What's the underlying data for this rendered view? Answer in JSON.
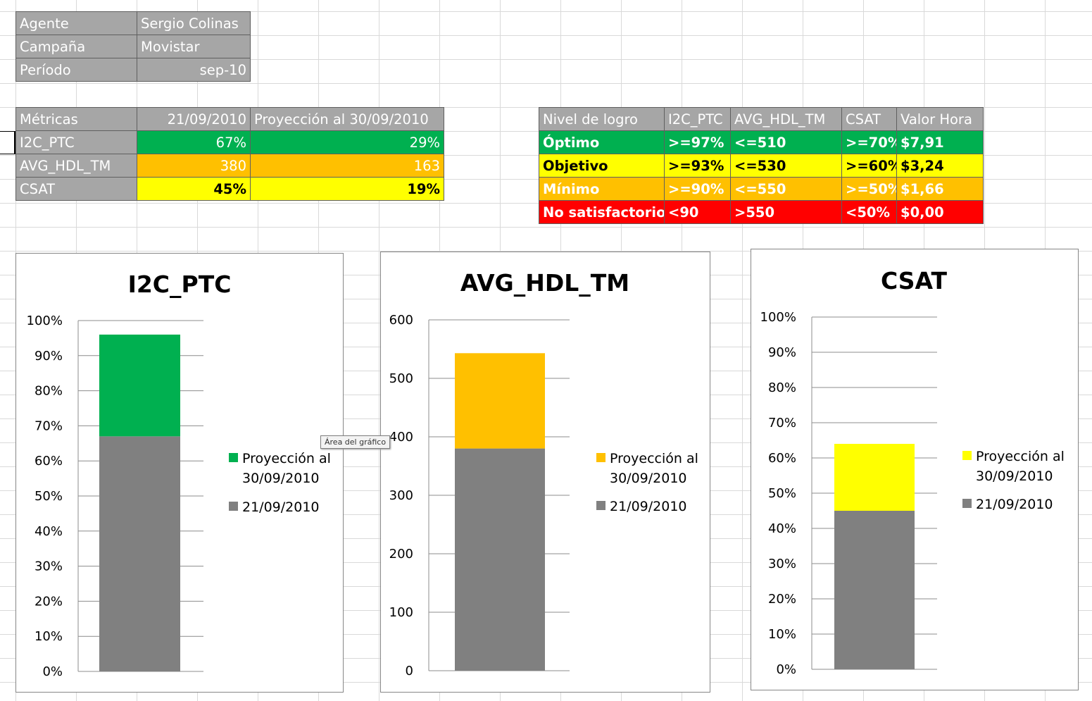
{
  "info_table": {
    "rows": [
      {
        "label": "Agente",
        "value": "Sergio Colinas"
      },
      {
        "label": "Campaña",
        "value": "Movistar"
      },
      {
        "label": "Período",
        "value": "sep-10"
      }
    ]
  },
  "metrics_table": {
    "headers": [
      "Métricas",
      "21/09/2010",
      "Proyección al 30/09/2010"
    ],
    "rows": [
      {
        "metric": "I2C_PTC",
        "current": "67%",
        "projection": "29%",
        "color": "#00b050"
      },
      {
        "metric": "AVG_HDL_TM",
        "current": "380",
        "projection": "163",
        "color": "#ffc000"
      },
      {
        "metric": "CSAT",
        "current": "45%",
        "projection": "19%",
        "color": "#ffff00"
      }
    ]
  },
  "levels_table": {
    "headers": [
      "Nivel de logro",
      "I2C_PTC",
      "AVG_HDL_TM",
      "CSAT",
      "Valor Hora"
    ],
    "rows": [
      {
        "cells": [
          "Óptimo",
          ">=97%",
          "<=510",
          ">=70%",
          "$7,91"
        ],
        "bg": "#00b050",
        "fg": "#ffffff"
      },
      {
        "cells": [
          "Objetivo",
          ">=93%",
          "<=530",
          ">=60%",
          "$3,24"
        ],
        "bg": "#ffff00",
        "fg": "#000000"
      },
      {
        "cells": [
          "Mínimo",
          ">=90%",
          "<=550",
          ">=50%",
          "$1,66"
        ],
        "bg": "#ffc000",
        "fg": "#ffffff"
      },
      {
        "cells": [
          "No satisfactorio",
          "<90",
          ">550",
          "<50%",
          "$0,00"
        ],
        "bg": "#ff0000",
        "fg": "#ffffff"
      }
    ]
  },
  "tooltip_text": "Área del gráfico",
  "chart_data": [
    {
      "type": "bar",
      "title": "I2C_PTC",
      "categories": [
        ""
      ],
      "series": [
        {
          "name": "21/09/2010",
          "values": [
            67
          ],
          "color": "#808080"
        },
        {
          "name": "Proyección al 30/09/2010",
          "values": [
            29
          ],
          "color": "#00b050"
        }
      ],
      "stacked": true,
      "ylim": [
        0,
        100
      ],
      "ticks": [
        0,
        10,
        20,
        30,
        40,
        50,
        60,
        70,
        80,
        90,
        100
      ],
      "tick_labels": [
        "0%",
        "10%",
        "20%",
        "30%",
        "40%",
        "50%",
        "60%",
        "70%",
        "80%",
        "90%",
        "100%"
      ],
      "legend_position": "right",
      "legend_entries": [
        {
          "lines": [
            "Proyección al",
            "30/09/2010"
          ],
          "color": "#00b050"
        },
        {
          "lines": [
            "21/09/2010"
          ],
          "color": "#808080"
        }
      ]
    },
    {
      "type": "bar",
      "title": "AVG_HDL_TM",
      "categories": [
        ""
      ],
      "series": [
        {
          "name": "21/09/2010",
          "values": [
            380
          ],
          "color": "#808080"
        },
        {
          "name": "Proyección al 30/09/2010",
          "values": [
            163
          ],
          "color": "#ffc000"
        }
      ],
      "stacked": true,
      "ylim": [
        0,
        600
      ],
      "ticks": [
        0,
        100,
        200,
        300,
        400,
        500,
        600
      ],
      "tick_labels": [
        "0",
        "100",
        "200",
        "300",
        "400",
        "500",
        "600"
      ],
      "legend_position": "right",
      "legend_entries": [
        {
          "lines": [
            "Proyección al",
            "30/09/2010"
          ],
          "color": "#ffc000"
        },
        {
          "lines": [
            "21/09/2010"
          ],
          "color": "#808080"
        }
      ]
    },
    {
      "type": "bar",
      "title": "CSAT",
      "categories": [
        ""
      ],
      "series": [
        {
          "name": "21/09/2010",
          "values": [
            45
          ],
          "color": "#808080"
        },
        {
          "name": "Proyección al 30/09/2010",
          "values": [
            19
          ],
          "color": "#ffff00"
        }
      ],
      "stacked": true,
      "ylim": [
        0,
        100
      ],
      "ticks": [
        0,
        10,
        20,
        30,
        40,
        50,
        60,
        70,
        80,
        90,
        100
      ],
      "tick_labels": [
        "0%",
        "10%",
        "20%",
        "30%",
        "40%",
        "50%",
        "60%",
        "70%",
        "80%",
        "90%",
        "100%"
      ],
      "legend_position": "right",
      "legend_entries": [
        {
          "lines": [
            "Proyección al",
            "30/09/2010"
          ],
          "color": "#ffff00"
        },
        {
          "lines": [
            "21/09/2010"
          ],
          "color": "#808080"
        }
      ]
    }
  ]
}
